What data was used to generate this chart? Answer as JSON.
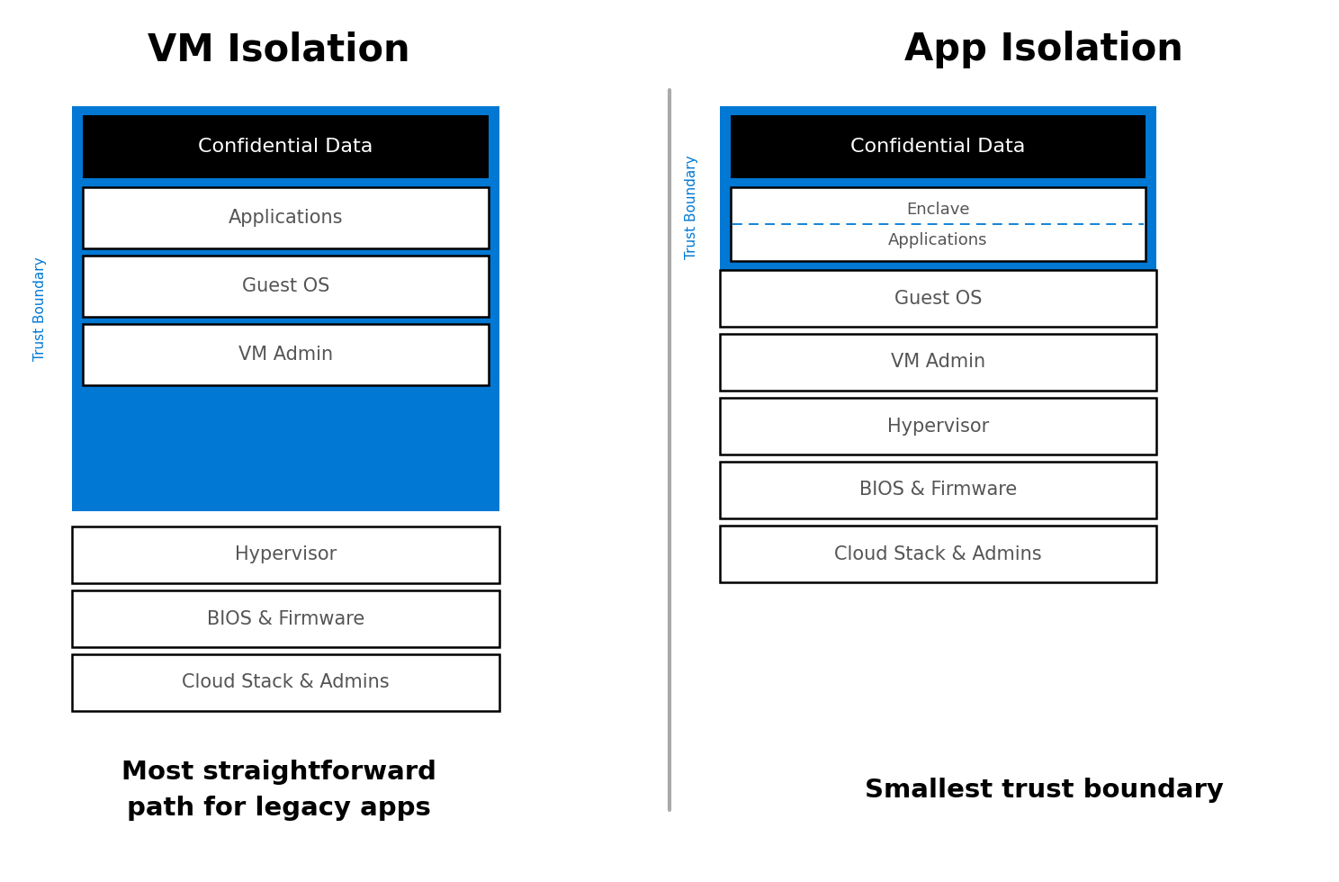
{
  "title_left": "VM Isolation",
  "title_right": "App Isolation",
  "subtitle_left": "Most straightforward\npath for legacy apps",
  "subtitle_right": "Smallest trust boundary",
  "blue_color": "#0078D4",
  "black_color": "#000000",
  "white_color": "#FFFFFF",
  "text_gray": "#555555",
  "trust_boundary_color": "#0078D4",
  "divider_color": "#AAAAAA",
  "fig_w": 14.88,
  "fig_h": 9.8,
  "dpi": 100
}
